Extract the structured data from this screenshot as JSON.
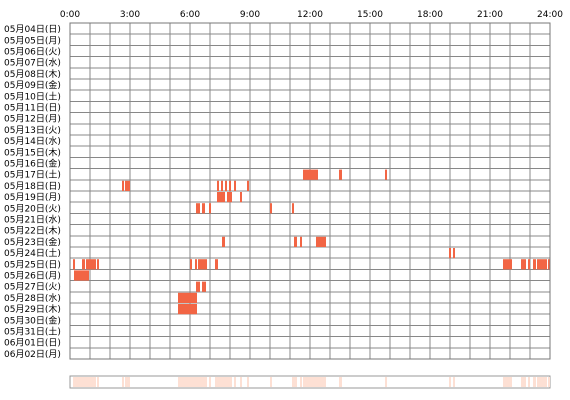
{
  "chart_data": {
    "type": "heatmap",
    "title": "",
    "xlabel": "",
    "ylabel": "",
    "xlim": [
      0,
      24
    ],
    "x_tick_labels": [
      "0:00",
      "3:00",
      "6:00",
      "9:00",
      "12:00",
      "15:00",
      "18:00",
      "21:00",
      "24:00"
    ],
    "rows": [
      "05月04日(日)",
      "05月05日(月)",
      "05月06日(火)",
      "05月07日(水)",
      "05月08日(木)",
      "05月09日(金)",
      "05月10日(土)",
      "05月11日(日)",
      "05月12日(月)",
      "05月13日(火)",
      "05月14日(水)",
      "05月15日(木)",
      "05月16日(金)",
      "05月17日(土)",
      "05月18日(日)",
      "05月19日(月)",
      "05月20日(火)",
      "05月21日(水)",
      "05月22日(木)",
      "05月23日(金)",
      "05月24日(土)",
      "05月25日(日)",
      "05月26日(月)",
      "05月27日(火)",
      "05月28日(水)",
      "05月29日(木)",
      "05月30日(金)",
      "05月31日(土)",
      "06月01日(日)",
      "06月02日(月)"
    ],
    "grid": true,
    "colors": {
      "activity": "#f26544",
      "gridline": "#888888",
      "summary": "#fde0d4",
      "frame": "#777777"
    },
    "activity": [
      {
        "row": 13,
        "start": 11.65,
        "end": 12.4
      },
      {
        "row": 13,
        "start": 13.45,
        "end": 13.6
      },
      {
        "row": 13,
        "start": 15.75,
        "end": 15.85
      },
      {
        "row": 14,
        "start": 2.6,
        "end": 2.7
      },
      {
        "row": 14,
        "start": 2.75,
        "end": 3.0
      },
      {
        "row": 14,
        "start": 7.35,
        "end": 7.45
      },
      {
        "row": 14,
        "start": 7.55,
        "end": 7.65
      },
      {
        "row": 14,
        "start": 7.75,
        "end": 7.85
      },
      {
        "row": 14,
        "start": 7.95,
        "end": 8.05
      },
      {
        "row": 14,
        "start": 8.2,
        "end": 8.3
      },
      {
        "row": 14,
        "start": 8.85,
        "end": 8.95
      },
      {
        "row": 15,
        "start": 7.35,
        "end": 7.75
      },
      {
        "row": 15,
        "start": 7.85,
        "end": 8.1
      },
      {
        "row": 15,
        "start": 8.5,
        "end": 8.6
      },
      {
        "row": 16,
        "start": 6.3,
        "end": 6.5
      },
      {
        "row": 16,
        "start": 6.6,
        "end": 6.75
      },
      {
        "row": 16,
        "start": 6.95,
        "end": 7.05
      },
      {
        "row": 16,
        "start": 10.0,
        "end": 10.1
      },
      {
        "row": 16,
        "start": 11.1,
        "end": 11.2
      },
      {
        "row": 19,
        "start": 7.6,
        "end": 7.75
      },
      {
        "row": 19,
        "start": 11.2,
        "end": 11.35
      },
      {
        "row": 19,
        "start": 11.5,
        "end": 11.6
      },
      {
        "row": 19,
        "start": 12.3,
        "end": 12.8
      },
      {
        "row": 20,
        "start": 18.95,
        "end": 19.05
      },
      {
        "row": 20,
        "start": 19.15,
        "end": 19.25
      },
      {
        "row": 21,
        "start": 0.15,
        "end": 0.25
      },
      {
        "row": 21,
        "start": 0.6,
        "end": 0.75
      },
      {
        "row": 21,
        "start": 0.8,
        "end": 1.3
      },
      {
        "row": 21,
        "start": 1.35,
        "end": 1.45
      },
      {
        "row": 21,
        "start": 6.0,
        "end": 6.1
      },
      {
        "row": 21,
        "start": 6.25,
        "end": 6.35
      },
      {
        "row": 21,
        "start": 6.4,
        "end": 6.85
      },
      {
        "row": 21,
        "start": 7.25,
        "end": 7.4
      },
      {
        "row": 21,
        "start": 21.65,
        "end": 22.1
      },
      {
        "row": 21,
        "start": 22.55,
        "end": 22.8
      },
      {
        "row": 21,
        "start": 22.9,
        "end": 23.0
      },
      {
        "row": 21,
        "start": 23.15,
        "end": 23.3
      },
      {
        "row": 21,
        "start": 23.35,
        "end": 23.85
      },
      {
        "row": 21,
        "start": 23.9,
        "end": 24.0
      },
      {
        "row": 22,
        "start": 0.2,
        "end": 0.95
      },
      {
        "row": 23,
        "start": 6.3,
        "end": 6.5
      },
      {
        "row": 23,
        "start": 6.6,
        "end": 6.8
      },
      {
        "row": 24,
        "start": 5.4,
        "end": 6.35
      },
      {
        "row": 25,
        "start": 5.4,
        "end": 6.35
      }
    ]
  }
}
